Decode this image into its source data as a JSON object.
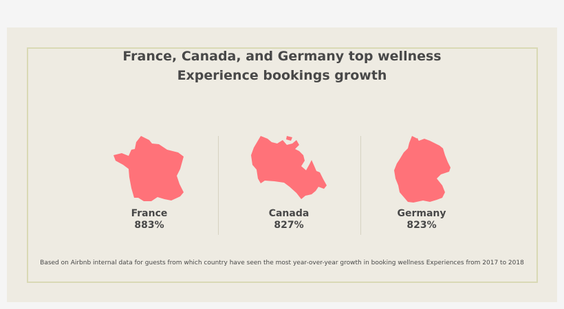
{
  "title_lines": [
    "France, Canada, and Germany top wellness",
    "Experience bookings growth"
  ],
  "countries": [
    {
      "name": "France",
      "value": "883%"
    },
    {
      "name": "Canada",
      "value": "827%"
    },
    {
      "name": "Germany",
      "value": "823%"
    }
  ],
  "footnote": "Based on Airbnb internal data for guests from which country have seen the most year-over-year growth in booking wellness Experiences from 2017 to 2018",
  "colors": {
    "map_fill": "#ff7279",
    "card_background": "#eeebe2",
    "frame_border": "#d9d9b5",
    "text": "#484848"
  }
}
